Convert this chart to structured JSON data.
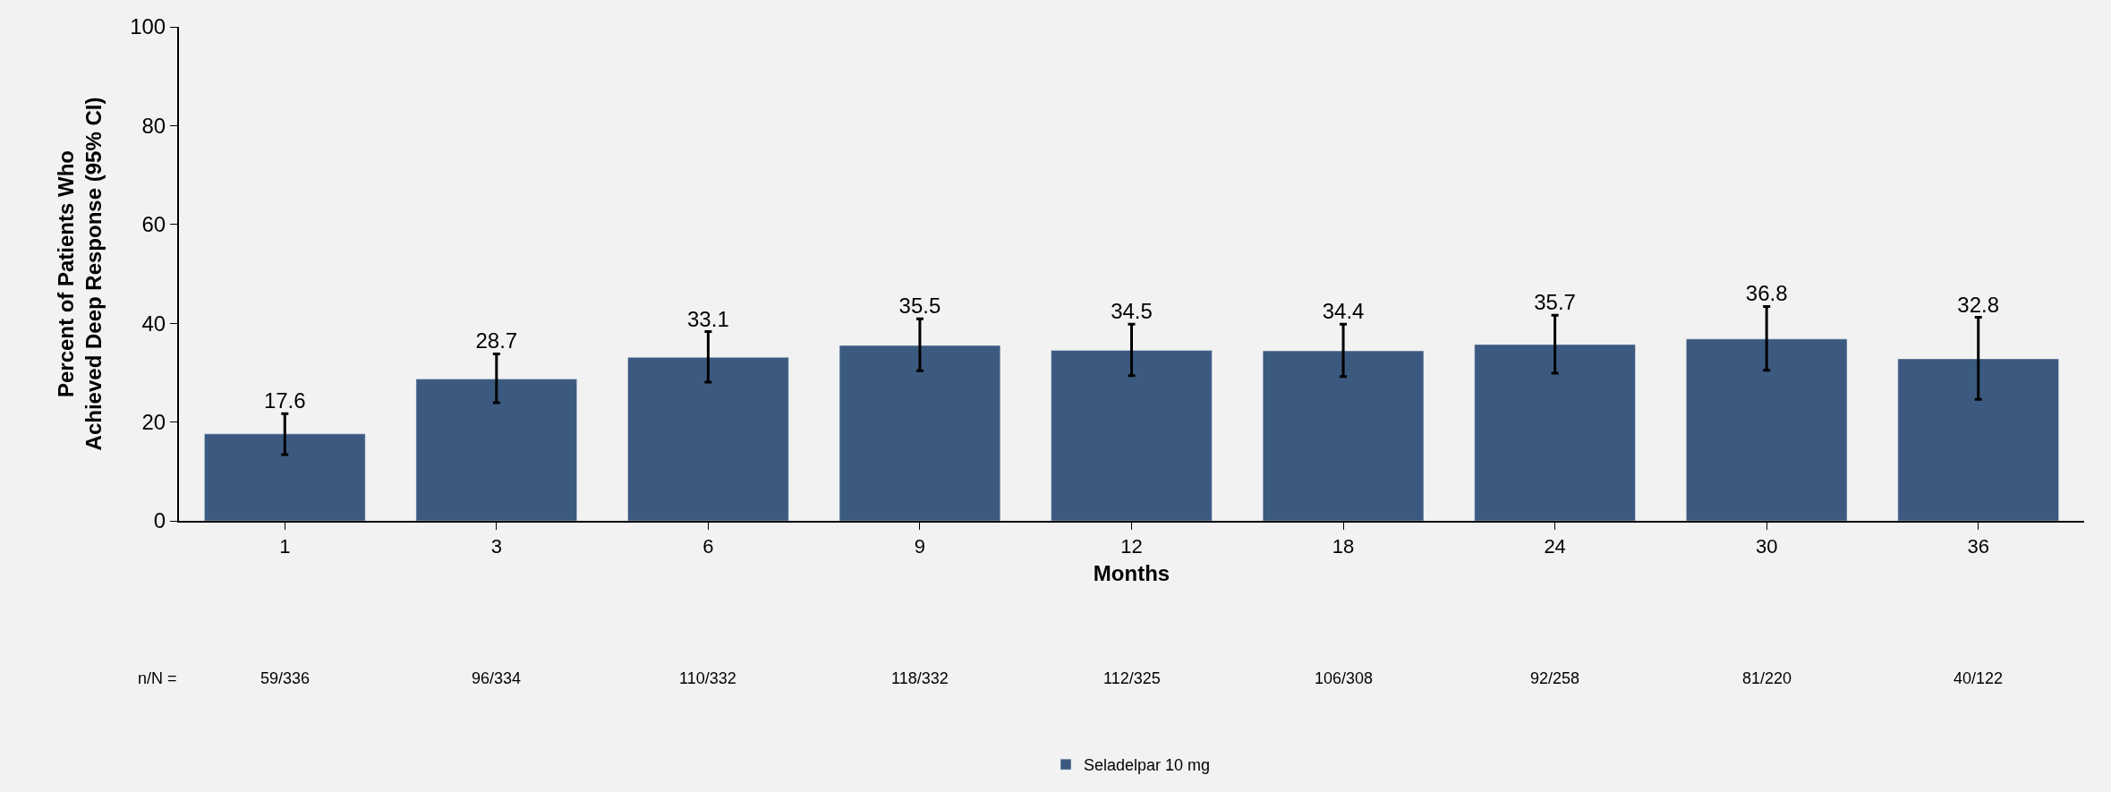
{
  "chart_data": {
    "type": "bar",
    "xlabel": "Months",
    "ylabel": "Percent of Patients Who\nAchieved Deep Response (95% CI)",
    "categories": [
      "1",
      "3",
      "6",
      "9",
      "12",
      "18",
      "24",
      "30",
      "36"
    ],
    "series": [
      {
        "name": "Seladelpar 10 mg",
        "color": "#3c5a80",
        "values": [
          17.6,
          28.7,
          33.1,
          35.5,
          34.5,
          34.4,
          35.7,
          36.8,
          32.8
        ],
        "errors": [
          [
            13.4,
            21.7
          ],
          [
            23.9,
            33.8
          ],
          [
            28.1,
            38.3
          ],
          [
            30.4,
            40.9
          ],
          [
            29.4,
            39.8
          ],
          [
            29.2,
            39.8
          ],
          [
            29.9,
            41.6
          ],
          [
            30.5,
            43.4
          ],
          [
            24.6,
            41.2
          ]
        ]
      }
    ],
    "ylim": [
      0,
      100
    ],
    "yticks": [
      0,
      20,
      40,
      60,
      80,
      100
    ],
    "grid": false,
    "legend": "bottom",
    "data_labels": true,
    "annotations": [
      "n/N =",
      "59/336",
      "96/334",
      "110/332",
      "118/332",
      "112/325",
      "106/308",
      "92/258",
      "81/220",
      "40/122"
    ]
  }
}
